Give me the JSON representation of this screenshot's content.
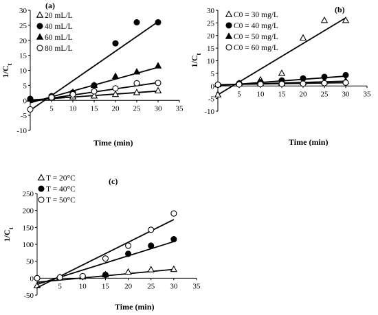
{
  "chart_data": [
    {
      "type": "scatter",
      "panel_label": "(a)",
      "xlabel": "Time (min)",
      "ylabel": "1/C",
      "ylabel_sub": "t",
      "xlim": [
        0,
        35
      ],
      "ylim": [
        -10,
        30
      ],
      "xticks": [
        "0",
        "5",
        "10",
        "15",
        "20",
        "25",
        "30",
        "35"
      ],
      "yticks": [
        "-10",
        "-5",
        "0",
        "5",
        "10",
        "15",
        "20",
        "25",
        "30"
      ],
      "legend_position": "top-left",
      "series": [
        {
          "name": "20 mL/L",
          "marker": "triangle-open",
          "x": [
            0,
            5,
            10,
            15,
            20,
            25,
            30
          ],
          "y": [
            0.5,
            1.0,
            1.2,
            1.5,
            2.0,
            2.6,
            3.2
          ],
          "fit": [
            0.1,
            3.1
          ]
        },
        {
          "name": "40 mL/L",
          "marker": "circle-filled",
          "x": [
            0,
            5,
            10,
            15,
            20,
            25,
            30
          ],
          "y": [
            0.5,
            1.4,
            2.6,
            5.0,
            19.0,
            26.0,
            26.0
          ],
          "fit": [
            -3.3,
            26.2
          ]
        },
        {
          "name": "60 mL/L",
          "marker": "triangle-filled",
          "x": [
            0,
            5,
            10,
            15,
            20,
            25,
            30
          ],
          "y": [
            0.5,
            1.3,
            2.7,
            5.0,
            8.0,
            9.5,
            11.5
          ],
          "fit": [
            -0.8,
            11.0
          ]
        },
        {
          "name": "80 mL/L",
          "marker": "circle-open",
          "x": [
            0,
            5,
            10,
            15,
            20,
            25,
            30
          ],
          "y": [
            -3.0,
            1.0,
            2.0,
            3.0,
            4.0,
            5.7,
            5.8
          ],
          "fit": [
            -0.3,
            5.9
          ]
        }
      ]
    },
    {
      "type": "scatter",
      "panel_label": "(b)",
      "xlabel": "Time (min)",
      "ylabel": "1/C",
      "ylabel_sub": "t",
      "xlim": [
        0,
        35
      ],
      "ylim": [
        -10,
        30
      ],
      "xticks": [
        "0",
        "5",
        "10",
        "15",
        "20",
        "25",
        "30",
        "35"
      ],
      "yticks": [
        "-10",
        "-5",
        "0",
        "5",
        "10",
        "15",
        "20",
        "25",
        "30"
      ],
      "legend_position": "top-left",
      "series": [
        {
          "name": "C0 = 30 mg/L",
          "marker": "triangle-open",
          "x": [
            0,
            5,
            10,
            15,
            20,
            25,
            30
          ],
          "y": [
            -3.5,
            1.0,
            2.4,
            5.0,
            19.0,
            26.0,
            26.0
          ],
          "fit": [
            -3.5,
            27.0
          ]
        },
        {
          "name": "C0 = 40 mg/L",
          "marker": "circle-filled",
          "x": [
            0,
            5,
            10,
            15,
            20,
            25,
            30
          ],
          "y": [
            0.5,
            1.0,
            1.5,
            2.2,
            3.0,
            3.6,
            4.3
          ],
          "fit": [
            0.1,
            3.9
          ]
        },
        {
          "name": "C0 = 50 mg/L",
          "marker": "triangle-filled",
          "x": [
            0,
            5,
            10,
            15,
            20,
            25,
            30
          ],
          "y": [
            0.5,
            0.8,
            1.0,
            1.2,
            1.4,
            1.7,
            2.0
          ],
          "fit": [
            0.4,
            1.9
          ]
        },
        {
          "name": "C0 = 60 mg/L",
          "marker": "circle-open",
          "x": [
            0,
            5,
            10,
            15,
            20,
            25,
            30
          ],
          "y": [
            0.5,
            0.6,
            0.7,
            0.8,
            0.9,
            1.1,
            1.3
          ],
          "fit": [
            0.5,
            1.3
          ]
        }
      ]
    },
    {
      "type": "scatter",
      "panel_label": "(c)",
      "xlabel": "Time (min)",
      "ylabel": "1/C",
      "ylabel_sub": "t",
      "xlim": [
        0,
        35
      ],
      "ylim": [
        -50,
        250
      ],
      "xticks": [
        "0",
        "5",
        "10",
        "15",
        "20",
        "25",
        "30",
        "35"
      ],
      "yticks": [
        "-50",
        "0",
        "50",
        "100",
        "150",
        "200",
        "250"
      ],
      "legend_position": "top-left",
      "series": [
        {
          "name": "T = 20°C",
          "marker": "triangle-open",
          "x": [
            0,
            5,
            10,
            15,
            20,
            25,
            30
          ],
          "y": [
            -22,
            2,
            4,
            10,
            18,
            25,
            26
          ],
          "fit": [
            -12,
            26
          ]
        },
        {
          "name": "T = 40°C",
          "marker": "circle-filled",
          "x": [
            0,
            5,
            10,
            15,
            20,
            25,
            30
          ],
          "y": [
            0,
            2,
            5,
            10,
            72,
            96,
            115
          ],
          "fit": [
            -18,
            108
          ]
        },
        {
          "name": "T = 50°C",
          "marker": "circle-open",
          "x": [
            0,
            5,
            10,
            15,
            20,
            25,
            30
          ],
          "y": [
            0,
            2,
            6,
            58,
            96,
            143,
            191
          ],
          "fit": [
            -28,
            173
          ]
        }
      ]
    }
  ]
}
